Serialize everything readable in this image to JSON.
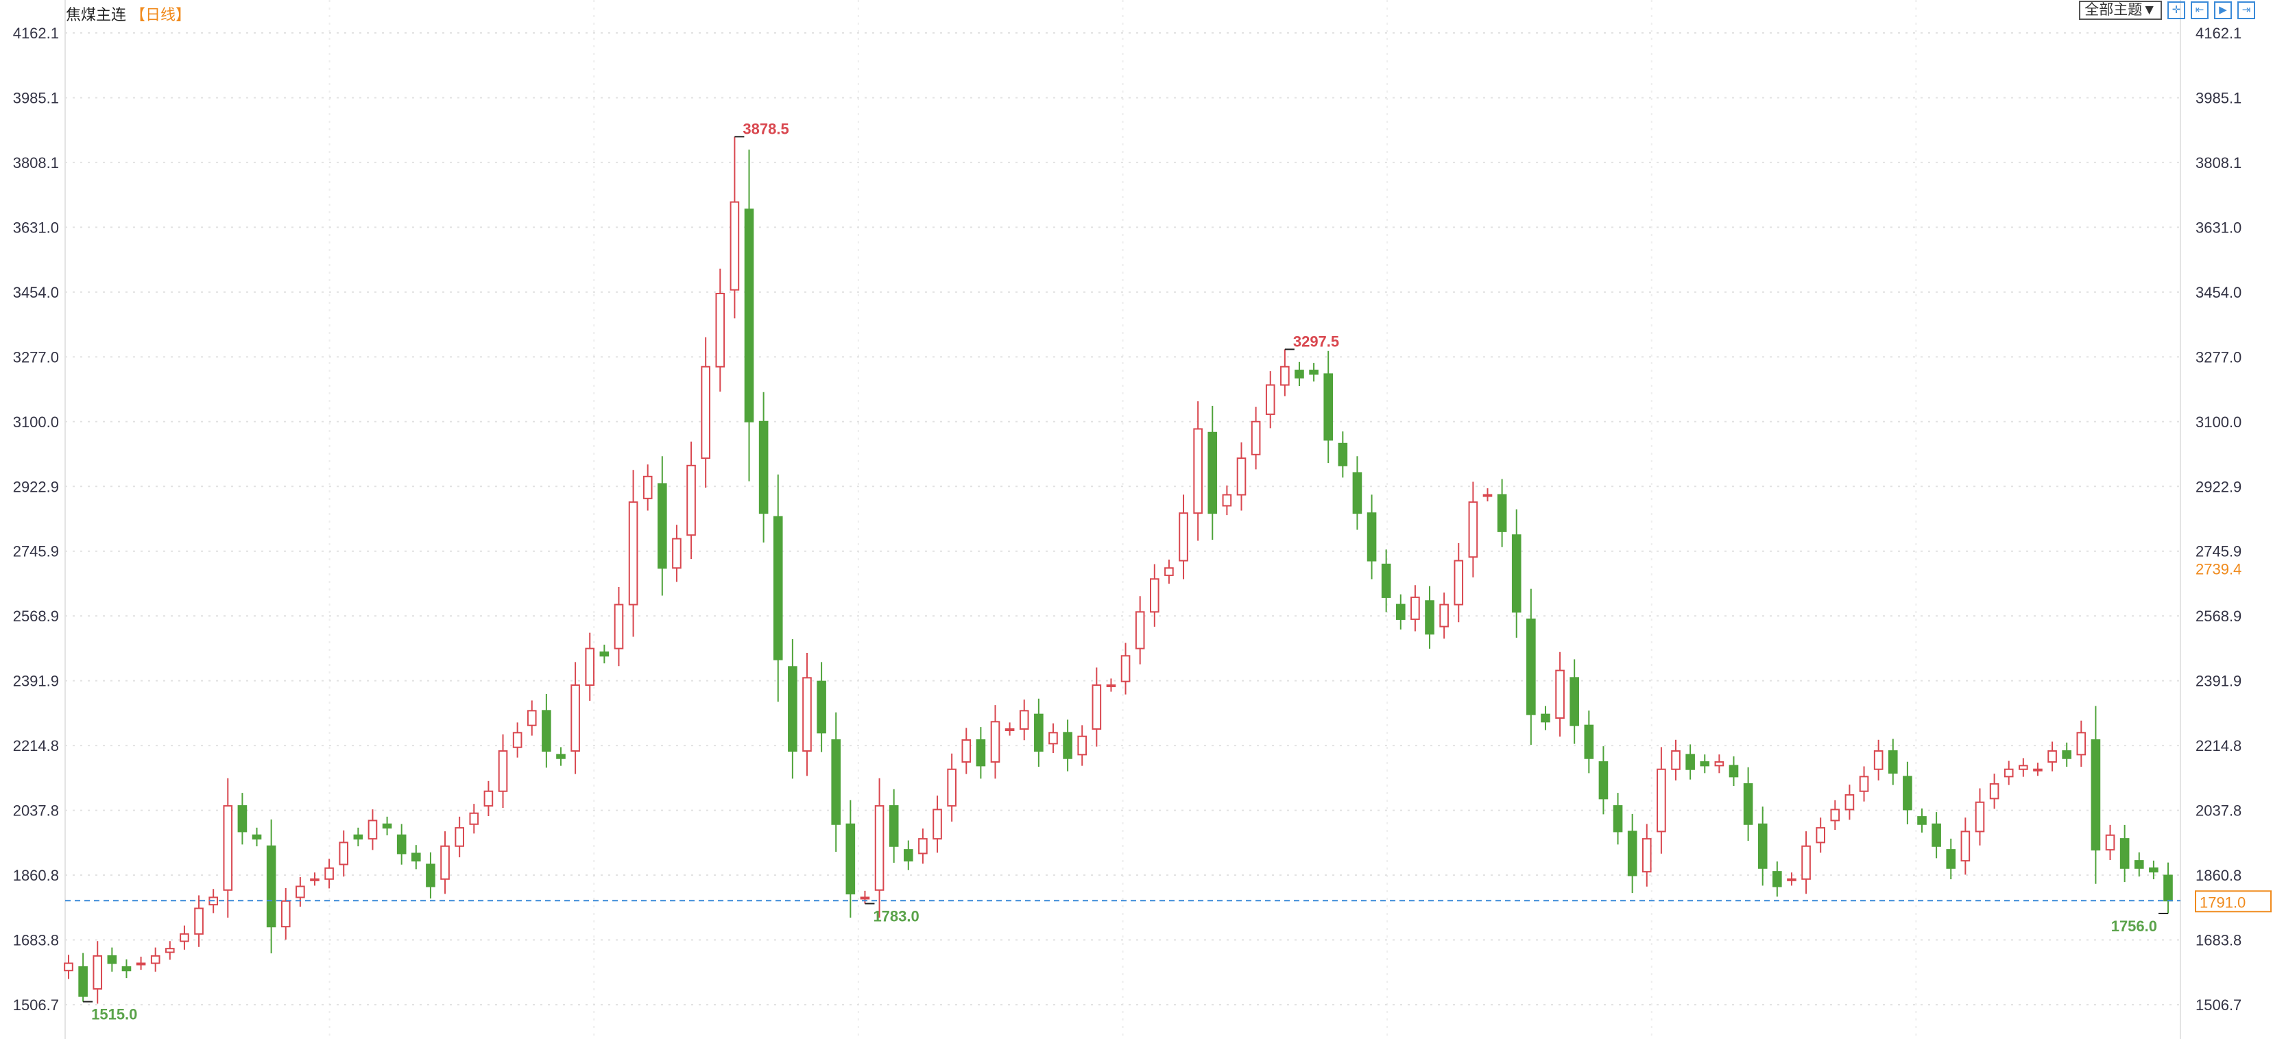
{
  "header": {
    "title": "焦煤主连",
    "period": "【日线】"
  },
  "toolbar": {
    "theme_select": "全部主题▼",
    "icons": [
      "crosshair-icon",
      "zoom-range-icon",
      "play-forward-icon",
      "jump-end-icon"
    ]
  },
  "colors": {
    "up": "#d9474f",
    "down": "#4fa33a",
    "last_price_line": "#3a8ad8",
    "last_price_tag": "#f08a1c",
    "high_label": "#d9474f",
    "low_label": "#5aa34a",
    "axis_text": "#333344"
  },
  "chart_data": {
    "type": "candlestick",
    "title": "焦煤主连",
    "ylim": [
      1506.7,
      4162.1
    ],
    "y_ticks": [
      "4162.1",
      "3985.1",
      "3808.1",
      "3631.0",
      "3454.0",
      "3277.0",
      "3100.0",
      "2922.9",
      "2745.9",
      "2568.9",
      "2391.9",
      "2214.8",
      "2037.8",
      "1860.8",
      "1683.8",
      "1506.7"
    ],
    "grid": true,
    "close": [
      1620,
      1530,
      1640,
      1620,
      1600,
      1620,
      1640,
      1660,
      1700,
      1770,
      1800,
      2050,
      1980,
      1960,
      1720,
      1790,
      1830,
      1850,
      1880,
      1950,
      1960,
      2010,
      1990,
      1920,
      1900,
      1830,
      1940,
      1990,
      2030,
      2090,
      2200,
      2250,
      2310,
      2200,
      2180,
      2380,
      2480,
      2460,
      2600,
      2880,
      2950,
      2700,
      2780,
      2980,
      3250,
      3450,
      3700,
      3100,
      2850,
      2450,
      2200,
      2400,
      2250,
      2000,
      1810,
      1800,
      2050,
      1940,
      1900,
      1960,
      2040,
      2150,
      2230,
      2160,
      2280,
      2260,
      2310,
      2200,
      2250,
      2180,
      2240,
      2380,
      2380,
      2460,
      2580,
      2670,
      2700,
      2850,
      3080,
      2850,
      2900,
      3000,
      3100,
      3200,
      3250,
      3220,
      3230,
      3050,
      2980,
      2850,
      2720,
      2620,
      2560,
      2620,
      2520,
      2600,
      2720,
      2880,
      2900,
      2800,
      2580,
      2300,
      2280,
      2420,
      2270,
      2180,
      2070,
      1980,
      1860,
      1960,
      2150,
      2200,
      2150,
      2160,
      2170,
      2130,
      2000,
      1880,
      1830,
      1850,
      1940,
      1990,
      2040,
      2080,
      2130,
      2200,
      2140,
      2040,
      2000,
      1940,
      1880,
      1980,
      2060,
      2110,
      2150,
      2160,
      2150,
      2200,
      2180,
      2250,
      1930,
      1970,
      1880,
      1880,
      1870,
      1791
    ],
    "extremes": [
      {
        "index": 1,
        "value": 1515.0,
        "type": "low",
        "label": "1515.0"
      },
      {
        "index": 46,
        "value": 3878.5,
        "type": "high",
        "label": "3878.5"
      },
      {
        "index": 55,
        "value": 1783.0,
        "type": "low",
        "label": "1783.0"
      },
      {
        "index": 84,
        "value": 3297.5,
        "type": "high",
        "label": "3297.5"
      },
      {
        "index": 145,
        "value": 1756.0,
        "type": "low",
        "label": "1756.0"
      }
    ],
    "last_price": {
      "value": 1791.0,
      "label": "1791.0"
    },
    "right_tag": {
      "value": 2739.4,
      "label": "2739.4"
    }
  }
}
